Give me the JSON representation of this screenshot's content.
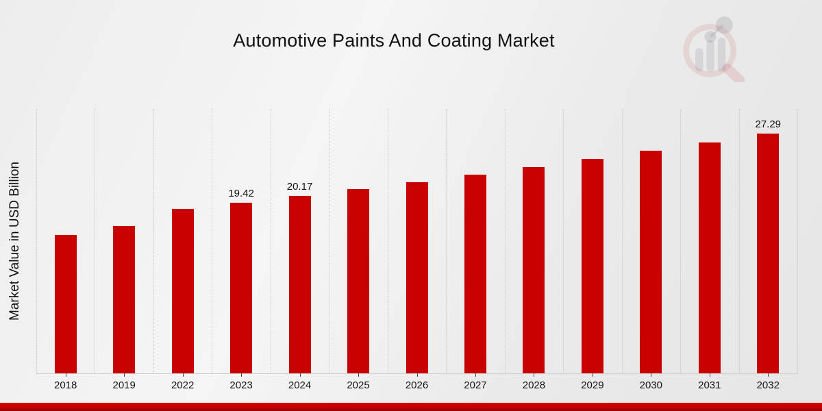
{
  "title": "Automotive Paints And Coating Market",
  "y_axis_label": "Market Value in USD Billion",
  "watermark_icon": "market-research-future-logo",
  "colors": {
    "bar": "#c80000",
    "band_top": "#d40000",
    "band_bottom": "#990000",
    "gridline": "#c4c4c4",
    "axis_line": "#cfcfcf",
    "text": "#111111"
  },
  "chart_data": {
    "type": "bar",
    "title": "Automotive Paints And Coating Market",
    "xlabel": "",
    "ylabel": "Market Value in USD Billion",
    "categories": [
      "2018",
      "2019",
      "2022",
      "2023",
      "2024",
      "2025",
      "2026",
      "2027",
      "2028",
      "2029",
      "2030",
      "2031",
      "2032"
    ],
    "values": [
      15.81,
      16.75,
      18.7,
      19.42,
      20.17,
      20.95,
      21.76,
      22.6,
      23.47,
      24.37,
      25.31,
      26.29,
      27.29
    ],
    "data_labels": {
      "2023": "19.42",
      "2024": "20.17",
      "2032": "27.29"
    },
    "ylim": [
      0,
      30
    ],
    "bar_color": "#c80000",
    "grid": "vertical-dotted",
    "legend": "none"
  }
}
